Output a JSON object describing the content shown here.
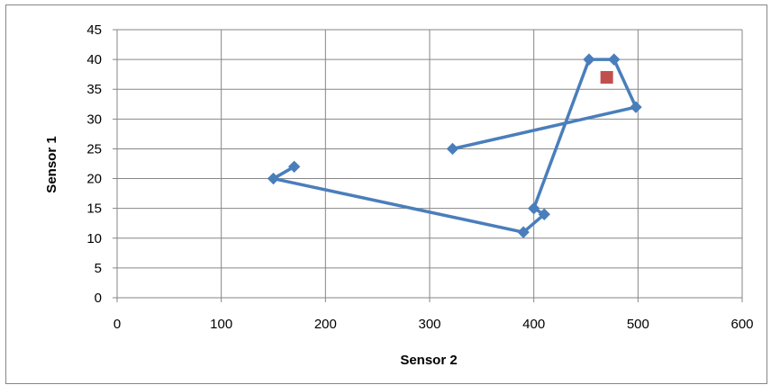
{
  "chart_data": {
    "type": "scatter",
    "title": "",
    "xlabel": "Sensor 2",
    "ylabel": "Sensor 1",
    "xlim": [
      0,
      600
    ],
    "ylim": [
      0,
      45
    ],
    "x_ticks": [
      0,
      100,
      200,
      300,
      400,
      500,
      600
    ],
    "y_ticks": [
      0,
      5,
      10,
      15,
      20,
      25,
      30,
      35,
      40,
      45
    ],
    "grid": true,
    "legend": "none",
    "series": [
      {
        "style": "line-with-diamond-markers",
        "color": "#4A7EBB",
        "points": [
          {
            "x": 170,
            "y": 22
          },
          {
            "x": 150,
            "y": 20
          },
          {
            "x": 390,
            "y": 11
          },
          {
            "x": 410,
            "y": 14
          },
          {
            "x": 400,
            "y": 15
          },
          {
            "x": 453,
            "y": 40
          },
          {
            "x": 477,
            "y": 40
          },
          {
            "x": 498,
            "y": 32
          },
          {
            "x": 322,
            "y": 25
          }
        ]
      },
      {
        "style": "square-marker",
        "color": "#C0504D",
        "points": [
          {
            "x": 470,
            "y": 37
          }
        ]
      }
    ]
  },
  "colors": {
    "gridline": "#868686",
    "frame": "#868686"
  }
}
